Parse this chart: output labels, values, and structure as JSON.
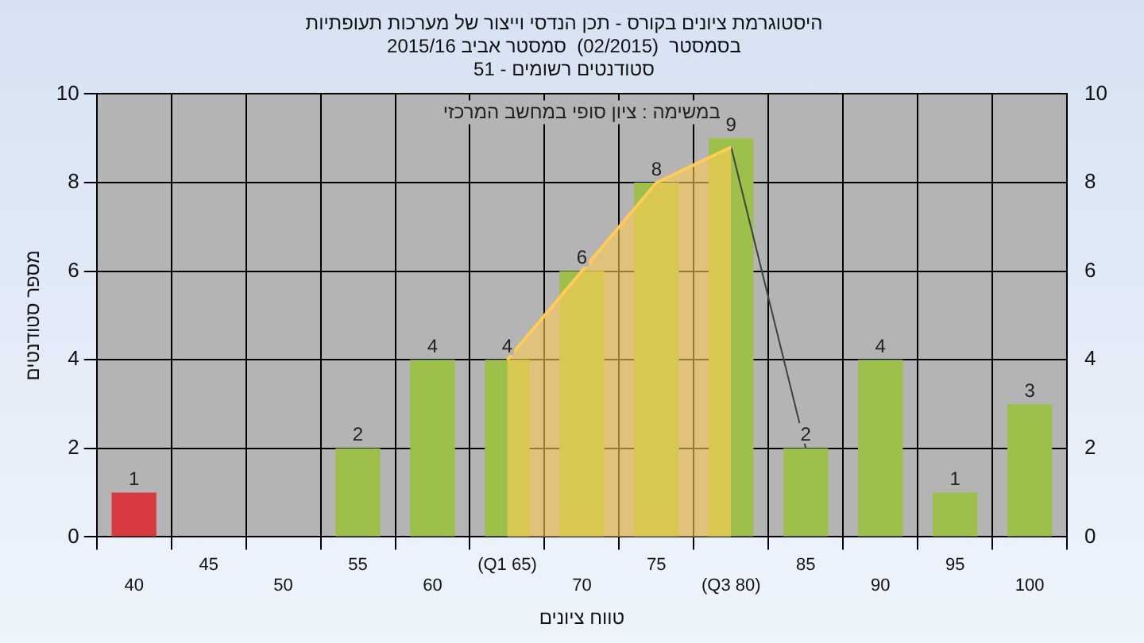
{
  "chart_data": {
    "type": "bar",
    "title": "היסטוגרמת ציונים בקורס - תכן הנדסי וייצור של מערכות תעופתיות",
    "subtitle": "בסמסטר  (02/2015)  סמסטר אביב 2015/16\nסטודנטים רשומים - 51",
    "xlabel": "טווח ציונים",
    "ylabel": "מספר סטודנטים",
    "categories": [
      "40",
      "45",
      "50",
      "55",
      "60",
      "(Q1 65)",
      "70",
      "75",
      "(Q3 80)",
      "85",
      "90",
      "95",
      "100"
    ],
    "series": [
      {
        "colors": [
          "#d93a40",
          "#9dc04a",
          "#9dc04a",
          "#9dc04a",
          "#9dc04a",
          "#9dc04a",
          "#9dc04a",
          "#9dc04a",
          "#9dc04a",
          "#9dc04a",
          "#9dc04a",
          "#9dc04a",
          "#9dc04a"
        ],
        "values": [
          1,
          0,
          0,
          2,
          4,
          4,
          6,
          8,
          9,
          2,
          4,
          1,
          3
        ],
        "value_labels": [
          "1",
          null,
          null,
          "2",
          "4",
          "4",
          "6",
          "8",
          "9",
          "2",
          "4",
          "1",
          "3"
        ]
      },
      {
        "type": "area",
        "color": "#ffcc55",
        "values": [
          null,
          null,
          null,
          null,
          null,
          4,
          6,
          8,
          8.8,
          null,
          null,
          null,
          null
        ]
      },
      {
        "type": "line",
        "color": "#404040",
        "values": [
          null,
          null,
          null,
          null,
          null,
          null,
          null,
          null,
          8.8,
          2,
          null,
          null,
          null
        ]
      }
    ],
    "ylim": [
      0,
      10
    ],
    "yticks": [
      0,
      2,
      4,
      6,
      8,
      10
    ],
    "y2lim": [
      0,
      10
    ],
    "y2ticks": [
      0,
      2,
      4,
      6,
      8,
      10
    ],
    "grid": true,
    "legend": false,
    "annotations": [
      "במשימה : ציון סופי במחשב המרכזי"
    ]
  }
}
